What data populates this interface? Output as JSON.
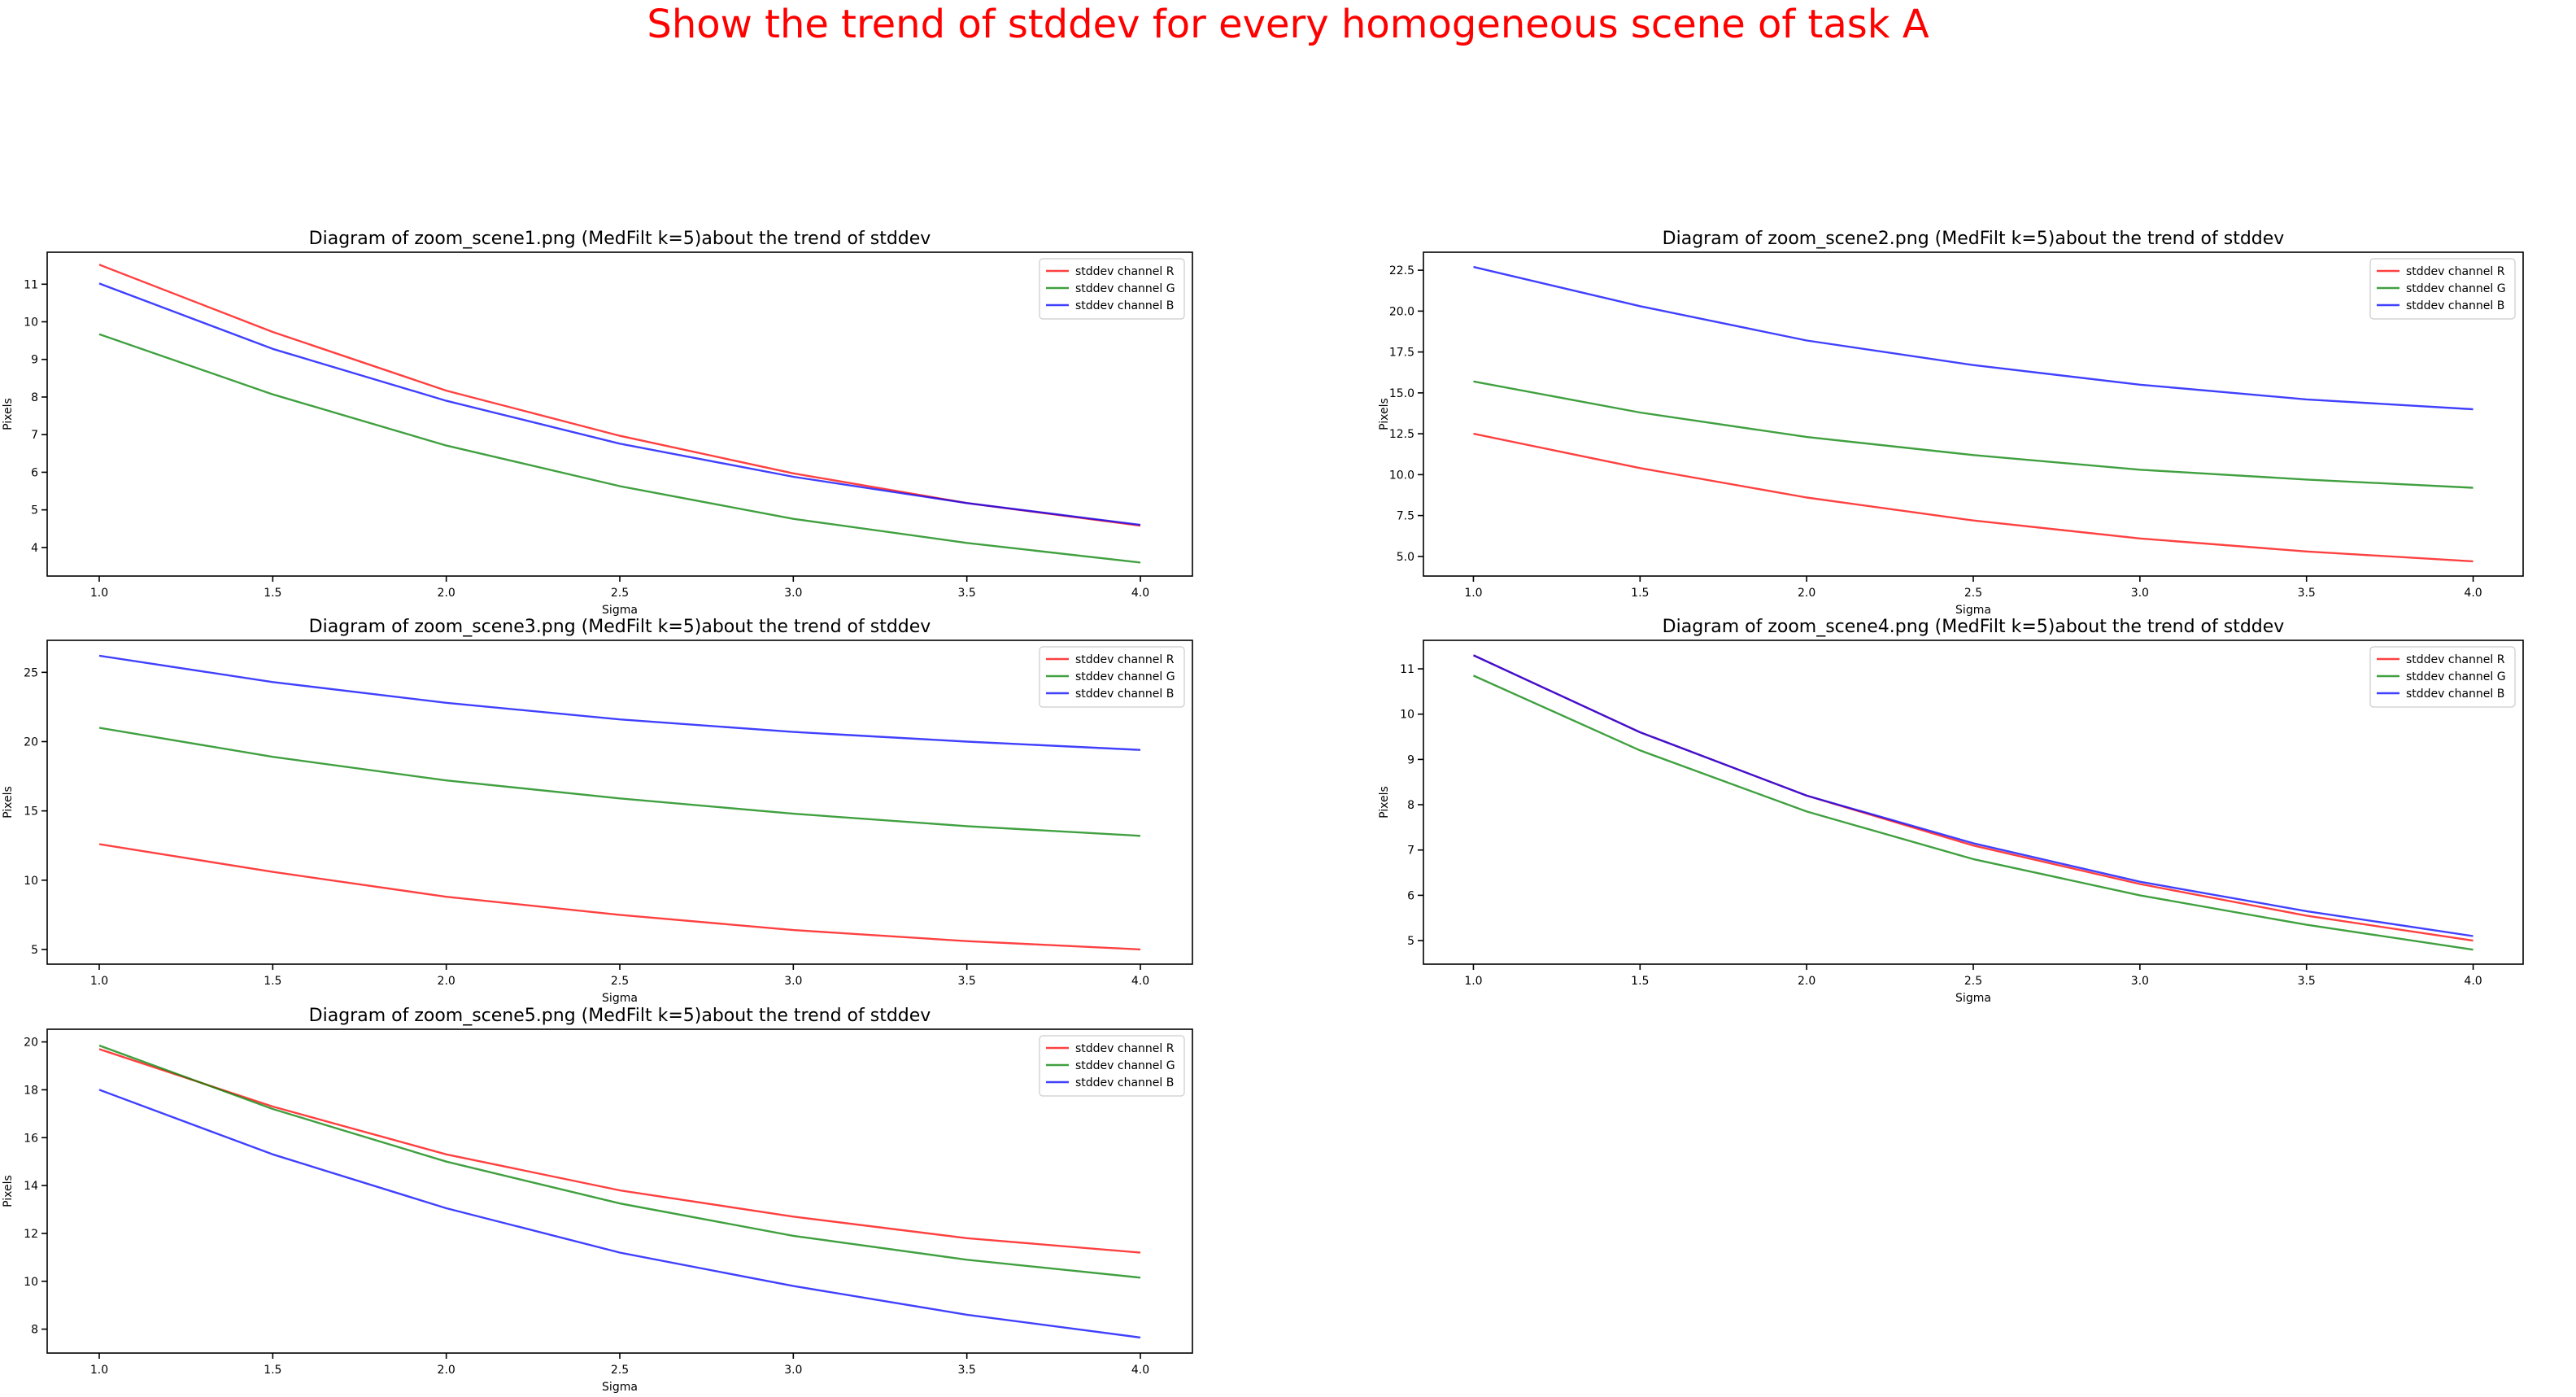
{
  "suptitle": "Show the trend of stddev for every homogeneous scene of task A",
  "colors": {
    "suptitle": "#ff0000",
    "R": "#ff0000",
    "G": "#008000",
    "B": "#0000ff"
  },
  "chart_data": [
    {
      "type": "line",
      "title": "Diagram of zoom_scene1.png (MedFilt k=5)about the trend of stddev",
      "xlabel": "Sigma",
      "ylabel": "Pixels",
      "x": [
        1.0,
        1.5,
        2.0,
        2.5,
        3.0,
        3.5,
        4.0
      ],
      "xticks": [
        "1.0",
        "1.5",
        "2.0",
        "2.5",
        "3.0",
        "3.5",
        "4.0"
      ],
      "yticks": [
        "4",
        "5",
        "6",
        "7",
        "8",
        "9",
        "10",
        "11"
      ],
      "ylim": [
        3.24,
        11.85
      ],
      "legend_position": "upper right",
      "series": [
        {
          "name": "stddev channel R",
          "color": "#ff0000",
          "values": [
            11.52,
            9.73,
            8.17,
            6.97,
            5.97,
            5.18,
            4.58
          ]
        },
        {
          "name": "stddev channel G",
          "color": "#008000",
          "values": [
            9.67,
            8.07,
            6.71,
            5.63,
            4.76,
            4.12,
            3.6
          ]
        },
        {
          "name": "stddev channel B",
          "color": "#0000ff",
          "values": [
            11.02,
            9.28,
            7.9,
            6.76,
            5.88,
            5.18,
            4.6
          ]
        }
      ]
    },
    {
      "type": "line",
      "title": "Diagram of zoom_scene2.png (MedFilt k=5)about the trend of stddev",
      "xlabel": "Sigma",
      "ylabel": "Pixels",
      "x": [
        1.0,
        1.5,
        2.0,
        2.5,
        3.0,
        3.5,
        4.0
      ],
      "xticks": [
        "1.0",
        "1.5",
        "2.0",
        "2.5",
        "3.0",
        "3.5",
        "4.0"
      ],
      "yticks": [
        "5.0",
        "7.5",
        "10.0",
        "12.5",
        "15.0",
        "17.5",
        "20.0",
        "22.5"
      ],
      "ylim": [
        3.8,
        23.6
      ],
      "legend_position": "upper right",
      "series": [
        {
          "name": "stddev channel R",
          "color": "#ff0000",
          "values": [
            12.5,
            10.4,
            8.6,
            7.2,
            6.1,
            5.3,
            4.7
          ]
        },
        {
          "name": "stddev channel G",
          "color": "#008000",
          "values": [
            15.7,
            13.8,
            12.3,
            11.2,
            10.3,
            9.7,
            9.2
          ]
        },
        {
          "name": "stddev channel B",
          "color": "#0000ff",
          "values": [
            22.7,
            20.3,
            18.2,
            16.7,
            15.5,
            14.6,
            14.0
          ]
        }
      ]
    },
    {
      "type": "line",
      "title": "Diagram of zoom_scene3.png (MedFilt k=5)about the trend of stddev",
      "xlabel": "Sigma",
      "ylabel": "Pixels",
      "x": [
        1.0,
        1.5,
        2.0,
        2.5,
        3.0,
        3.5,
        4.0
      ],
      "xticks": [
        "1.0",
        "1.5",
        "2.0",
        "2.5",
        "3.0",
        "3.5",
        "4.0"
      ],
      "yticks": [
        "5",
        "10",
        "15",
        "20",
        "25"
      ],
      "ylim": [
        3.94,
        27.31
      ],
      "legend_position": "upper right",
      "series": [
        {
          "name": "stddev channel R",
          "color": "#ff0000",
          "values": [
            12.6,
            10.6,
            8.8,
            7.5,
            6.4,
            5.6,
            5.0
          ]
        },
        {
          "name": "stddev channel G",
          "color": "#008000",
          "values": [
            21.0,
            18.9,
            17.2,
            15.9,
            14.8,
            13.9,
            13.2
          ]
        },
        {
          "name": "stddev channel B",
          "color": "#0000ff",
          "values": [
            26.2,
            24.3,
            22.8,
            21.6,
            20.7,
            20.0,
            19.4
          ]
        }
      ]
    },
    {
      "type": "line",
      "title": "Diagram of zoom_scene4.png (MedFilt k=5)about the trend of stddev",
      "xlabel": "Sigma",
      "ylabel": "Pixels",
      "x": [
        1.0,
        1.5,
        2.0,
        2.5,
        3.0,
        3.5,
        4.0
      ],
      "xticks": [
        "1.0",
        "1.5",
        "2.0",
        "2.5",
        "3.0",
        "3.5",
        "4.0"
      ],
      "yticks": [
        "5",
        "6",
        "7",
        "8",
        "9",
        "10",
        "11"
      ],
      "ylim": [
        4.48,
        11.63
      ],
      "legend_position": "upper right",
      "series": [
        {
          "name": "stddev channel R",
          "color": "#ff0000",
          "values": [
            11.3,
            9.6,
            8.2,
            7.1,
            6.25,
            5.55,
            5.0
          ]
        },
        {
          "name": "stddev channel G",
          "color": "#008000",
          "values": [
            10.85,
            9.2,
            7.85,
            6.8,
            6.0,
            5.35,
            4.8
          ]
        },
        {
          "name": "stddev channel B",
          "color": "#0000ff",
          "values": [
            11.3,
            9.6,
            8.2,
            7.15,
            6.3,
            5.65,
            5.1
          ]
        }
      ]
    },
    {
      "type": "line",
      "title": "Diagram of zoom_scene5.png (MedFilt k=5)about the trend of stddev",
      "xlabel": "Sigma",
      "ylabel": "Pixels",
      "x": [
        1.0,
        1.5,
        2.0,
        2.5,
        3.0,
        3.5,
        4.0
      ],
      "xticks": [
        "1.0",
        "1.5",
        "2.0",
        "2.5",
        "3.0",
        "3.5",
        "4.0"
      ],
      "yticks": [
        "8",
        "10",
        "12",
        "14",
        "16",
        "18",
        "20"
      ],
      "ylim": [
        7.0,
        20.53
      ],
      "legend_position": "upper right",
      "series": [
        {
          "name": "stddev channel R",
          "color": "#ff0000",
          "values": [
            19.7,
            17.3,
            15.3,
            13.8,
            12.7,
            11.8,
            11.2
          ]
        },
        {
          "name": "stddev channel G",
          "color": "#008000",
          "values": [
            19.85,
            17.2,
            15.0,
            13.25,
            11.9,
            10.9,
            10.15
          ]
        },
        {
          "name": "stddev channel B",
          "color": "#0000ff",
          "values": [
            18.0,
            15.3,
            13.05,
            11.2,
            9.8,
            8.6,
            7.65
          ]
        }
      ]
    }
  ]
}
